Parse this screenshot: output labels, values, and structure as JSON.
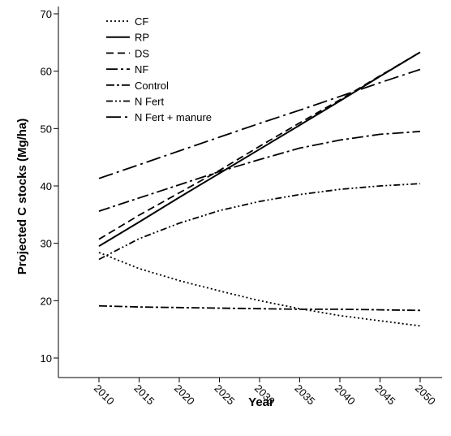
{
  "chart_data": {
    "type": "line",
    "title": "",
    "xlabel": "Year",
    "ylabel": "Projected C stocks (Mg/ha)",
    "x": [
      2010,
      2015,
      2020,
      2025,
      2030,
      2035,
      2040,
      2045,
      2050
    ],
    "xlim": [
      2010,
      2050
    ],
    "ylim": [
      7.5,
      71
    ],
    "y_ticks": [
      10,
      20,
      30,
      40,
      50,
      60,
      70
    ],
    "grid": false,
    "legend_position": "top-left",
    "series": [
      {
        "name": "CF",
        "dash": "dotted",
        "values": [
          28.4,
          25.6,
          23.5,
          21.7,
          20.0,
          18.6,
          17.4,
          16.5,
          15.6
        ]
      },
      {
        "name": "RP",
        "dash": "solid",
        "values": [
          29.5,
          33.7,
          38.0,
          42.2,
          46.4,
          50.6,
          54.8,
          59.1,
          63.3
        ]
      },
      {
        "name": "DS",
        "dash": "dashed",
        "values": [
          30.7,
          34.9,
          38.8,
          42.7,
          46.9,
          51.0,
          55.0,
          59.2,
          63.3
        ]
      },
      {
        "name": "NF",
        "dash": "dash-dot",
        "values": [
          35.6,
          37.9,
          40.2,
          42.5,
          44.6,
          46.6,
          48.0,
          49.0,
          49.5
        ]
      },
      {
        "name": "Control",
        "dash": "long-dash-dot",
        "values": [
          19.1,
          18.9,
          18.8,
          18.7,
          18.6,
          18.5,
          18.5,
          18.4,
          18.3
        ]
      },
      {
        "name": "N Fert",
        "dash": "dash-dot-dot",
        "values": [
          27.2,
          30.8,
          33.5,
          35.7,
          37.3,
          38.5,
          39.4,
          40.0,
          40.4
        ]
      },
      {
        "name": "N Fert + manure",
        "dash": "long-dash-dot-long",
        "values": [
          41.3,
          43.7,
          46.1,
          48.5,
          50.9,
          53.2,
          55.6,
          58.0,
          60.3
        ]
      }
    ]
  }
}
